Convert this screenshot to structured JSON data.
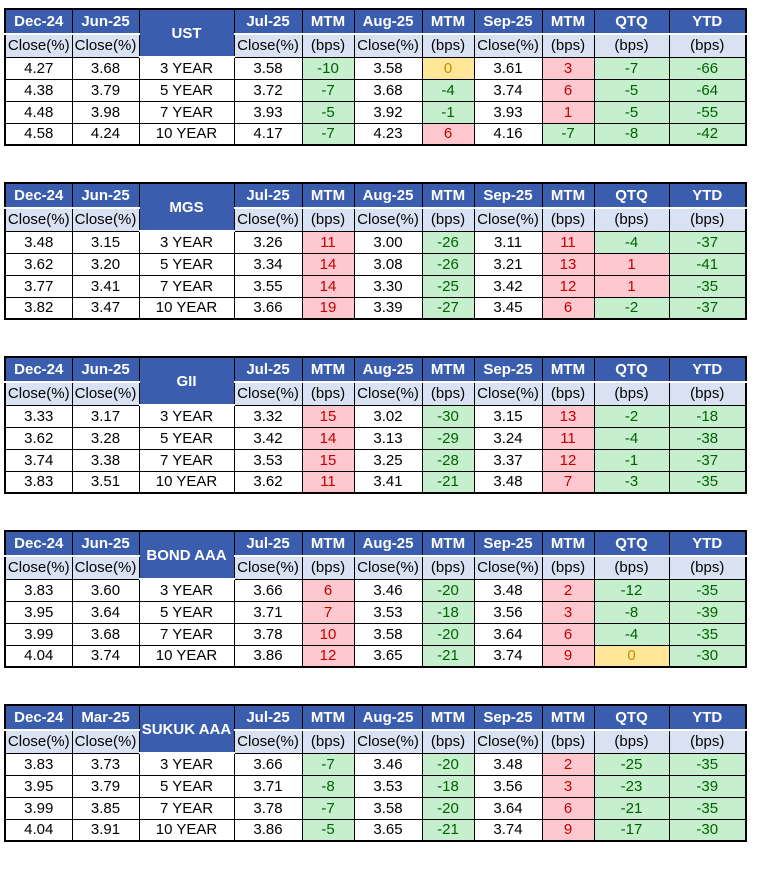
{
  "colors": {
    "header_bg": "#3A5DAD",
    "header_text": "#FFFFFF",
    "subheader_bg": "#D9E2F3",
    "name_bg": "#DEEAF6",
    "up_bg": "#FFC7CE",
    "up_text": "#C00000",
    "down_bg": "#C6EFCE",
    "down_text": "#006100",
    "zero_bg": "#FFE699",
    "zero_text": "#BF8F00"
  },
  "report": {
    "tables": [
      {
        "id": "ust",
        "name": "UST",
        "top_headers": [
          "Dec-24",
          "Jun-25",
          "Jul-25",
          "MTM",
          "Aug-25",
          "MTM",
          "Sep-25",
          "MTM",
          "QTQ",
          "YTD"
        ],
        "sub_headers": [
          "Close(%)",
          "Close(%)",
          "Close(%)",
          "(bps)",
          "Close(%)",
          "(bps)",
          "Close(%)",
          "(bps)",
          "(bps)",
          "(bps)"
        ],
        "rows": [
          [
            "4.27",
            "3.68",
            "3 YEAR",
            "3.58",
            {
              "v": "-10",
              "c": "green"
            },
            "3.58",
            {
              "v": "0",
              "c": "yellow"
            },
            "3.61",
            {
              "v": "3",
              "c": "red"
            },
            {
              "v": "-7",
              "c": "green"
            },
            {
              "v": "-66",
              "c": "green"
            }
          ],
          [
            "4.38",
            "3.79",
            "5 YEAR",
            "3.72",
            {
              "v": "-7",
              "c": "green"
            },
            "3.68",
            {
              "v": "-4",
              "c": "green"
            },
            "3.74",
            {
              "v": "6",
              "c": "red"
            },
            {
              "v": "-5",
              "c": "green"
            },
            {
              "v": "-64",
              "c": "green"
            }
          ],
          [
            "4.48",
            "3.98",
            "7 YEAR",
            "3.93",
            {
              "v": "-5",
              "c": "green"
            },
            "3.92",
            {
              "v": "-1",
              "c": "green"
            },
            "3.93",
            {
              "v": "1",
              "c": "red"
            },
            {
              "v": "-5",
              "c": "green"
            },
            {
              "v": "-55",
              "c": "green"
            }
          ],
          [
            "4.58",
            "4.24",
            "10 YEAR",
            "4.17",
            {
              "v": "-7",
              "c": "green"
            },
            "4.23",
            {
              "v": "6",
              "c": "red"
            },
            "4.16",
            {
              "v": "-7",
              "c": "green"
            },
            {
              "v": "-8",
              "c": "green"
            },
            {
              "v": "-42",
              "c": "green"
            }
          ]
        ]
      },
      {
        "id": "mgs",
        "name": "MGS",
        "top_headers": [
          "Dec-24",
          "Jun-25",
          "Jul-25",
          "MTM",
          "Aug-25",
          "MTM",
          "Sep-25",
          "MTM",
          "QTQ",
          "YTD"
        ],
        "sub_headers": [
          "Close(%)",
          "Close(%)",
          "Close(%)",
          "(bps)",
          "Close(%)",
          "(bps)",
          "Close(%)",
          "(bps)",
          "(bps)",
          "(bps)"
        ],
        "rows": [
          [
            "3.48",
            "3.15",
            "3 YEAR",
            "3.26",
            {
              "v": "11",
              "c": "red"
            },
            "3.00",
            {
              "v": "-26",
              "c": "green"
            },
            "3.11",
            {
              "v": "11",
              "c": "red"
            },
            {
              "v": "-4",
              "c": "green"
            },
            {
              "v": "-37",
              "c": "green"
            }
          ],
          [
            "3.62",
            "3.20",
            "5 YEAR",
            "3.34",
            {
              "v": "14",
              "c": "red"
            },
            "3.08",
            {
              "v": "-26",
              "c": "green"
            },
            "3.21",
            {
              "v": "13",
              "c": "red"
            },
            {
              "v": "1",
              "c": "red"
            },
            {
              "v": "-41",
              "c": "green"
            }
          ],
          [
            "3.77",
            "3.41",
            "7 YEAR",
            "3.55",
            {
              "v": "14",
              "c": "red"
            },
            "3.30",
            {
              "v": "-25",
              "c": "green"
            },
            "3.42",
            {
              "v": "12",
              "c": "red"
            },
            {
              "v": "1",
              "c": "red"
            },
            {
              "v": "-35",
              "c": "green"
            }
          ],
          [
            "3.82",
            "3.47",
            "10 YEAR",
            "3.66",
            {
              "v": "19",
              "c": "red"
            },
            "3.39",
            {
              "v": "-27",
              "c": "green"
            },
            "3.45",
            {
              "v": "6",
              "c": "red"
            },
            {
              "v": "-2",
              "c": "green"
            },
            {
              "v": "-37",
              "c": "green"
            }
          ]
        ]
      },
      {
        "id": "gii",
        "name": "GII",
        "top_headers": [
          "Dec-24",
          "Jun-25",
          "Jul-25",
          "MTM",
          "Aug-25",
          "MTM",
          "Sep-25",
          "MTM",
          "QTQ",
          "YTD"
        ],
        "sub_headers": [
          "Close(%)",
          "Close(%)",
          "Close(%)",
          "(bps)",
          "Close(%)",
          "(bps)",
          "Close(%)",
          "(bps)",
          "(bps)",
          "(bps)"
        ],
        "rows": [
          [
            "3.33",
            "3.17",
            "3 YEAR",
            "3.32",
            {
              "v": "15",
              "c": "red"
            },
            "3.02",
            {
              "v": "-30",
              "c": "green"
            },
            "3.15",
            {
              "v": "13",
              "c": "red"
            },
            {
              "v": "-2",
              "c": "green"
            },
            {
              "v": "-18",
              "c": "green"
            }
          ],
          [
            "3.62",
            "3.28",
            "5 YEAR",
            "3.42",
            {
              "v": "14",
              "c": "red"
            },
            "3.13",
            {
              "v": "-29",
              "c": "green"
            },
            "3.24",
            {
              "v": "11",
              "c": "red"
            },
            {
              "v": "-4",
              "c": "green"
            },
            {
              "v": "-38",
              "c": "green"
            }
          ],
          [
            "3.74",
            "3.38",
            "7 YEAR",
            "3.53",
            {
              "v": "15",
              "c": "red"
            },
            "3.25",
            {
              "v": "-28",
              "c": "green"
            },
            "3.37",
            {
              "v": "12",
              "c": "red"
            },
            {
              "v": "-1",
              "c": "green"
            },
            {
              "v": "-37",
              "c": "green"
            }
          ],
          [
            "3.83",
            "3.51",
            "10 YEAR",
            "3.62",
            {
              "v": "11",
              "c": "red"
            },
            "3.41",
            {
              "v": "-21",
              "c": "green"
            },
            "3.48",
            {
              "v": "7",
              "c": "red"
            },
            {
              "v": "-3",
              "c": "green"
            },
            {
              "v": "-35",
              "c": "green"
            }
          ]
        ]
      },
      {
        "id": "bond-aaa",
        "name": "BOND AAA",
        "top_headers": [
          "Dec-24",
          "Jun-25",
          "Jul-25",
          "MTM",
          "Aug-25",
          "MTM",
          "Sep-25",
          "MTM",
          "QTQ",
          "YTD"
        ],
        "sub_headers": [
          "Close(%)",
          "Close(%)",
          "Close(%)",
          "(bps)",
          "Close(%)",
          "(bps)",
          "Close(%)",
          "(bps)",
          "(bps)",
          "(bps)"
        ],
        "rows": [
          [
            "3.83",
            "3.60",
            "3 YEAR",
            "3.66",
            {
              "v": "6",
              "c": "red"
            },
            "3.46",
            {
              "v": "-20",
              "c": "green"
            },
            "3.48",
            {
              "v": "2",
              "c": "red"
            },
            {
              "v": "-12",
              "c": "green"
            },
            {
              "v": "-35",
              "c": "green"
            }
          ],
          [
            "3.95",
            "3.64",
            "5 YEAR",
            "3.71",
            {
              "v": "7",
              "c": "red"
            },
            "3.53",
            {
              "v": "-18",
              "c": "green"
            },
            "3.56",
            {
              "v": "3",
              "c": "red"
            },
            {
              "v": "-8",
              "c": "green"
            },
            {
              "v": "-39",
              "c": "green"
            }
          ],
          [
            "3.99",
            "3.68",
            "7 YEAR",
            "3.78",
            {
              "v": "10",
              "c": "red"
            },
            "3.58",
            {
              "v": "-20",
              "c": "green"
            },
            "3.64",
            {
              "v": "6",
              "c": "red"
            },
            {
              "v": "-4",
              "c": "green"
            },
            {
              "v": "-35",
              "c": "green"
            }
          ],
          [
            "4.04",
            "3.74",
            "10 YEAR",
            "3.86",
            {
              "v": "12",
              "c": "red"
            },
            "3.65",
            {
              "v": "-21",
              "c": "green"
            },
            "3.74",
            {
              "v": "9",
              "c": "red"
            },
            {
              "v": "0",
              "c": "yellow"
            },
            {
              "v": "-30",
              "c": "green"
            }
          ]
        ]
      },
      {
        "id": "sukuk-aaa",
        "name": "SUKUK AAA",
        "top_headers": [
          "Dec-24",
          "Mar-25",
          "Jul-25",
          "MTM",
          "Aug-25",
          "MTM",
          "Sep-25",
          "MTM",
          "QTQ",
          "YTD"
        ],
        "sub_headers": [
          "Close(%)",
          "Close(%)",
          "Close(%)",
          "(bps)",
          "Close(%)",
          "(bps)",
          "Close(%)",
          "(bps)",
          "(bps)",
          "(bps)"
        ],
        "rows": [
          [
            "3.83",
            "3.73",
            "3 YEAR",
            "3.66",
            {
              "v": "-7",
              "c": "green"
            },
            "3.46",
            {
              "v": "-20",
              "c": "green"
            },
            "3.48",
            {
              "v": "2",
              "c": "red"
            },
            {
              "v": "-25",
              "c": "green"
            },
            {
              "v": "-35",
              "c": "green"
            }
          ],
          [
            "3.95",
            "3.79",
            "5 YEAR",
            "3.71",
            {
              "v": "-8",
              "c": "green"
            },
            "3.53",
            {
              "v": "-18",
              "c": "green"
            },
            "3.56",
            {
              "v": "3",
              "c": "red"
            },
            {
              "v": "-23",
              "c": "green"
            },
            {
              "v": "-39",
              "c": "green"
            }
          ],
          [
            "3.99",
            "3.85",
            "7 YEAR",
            "3.78",
            {
              "v": "-7",
              "c": "green"
            },
            "3.58",
            {
              "v": "-20",
              "c": "green"
            },
            "3.64",
            {
              "v": "6",
              "c": "red"
            },
            {
              "v": "-21",
              "c": "green"
            },
            {
              "v": "-35",
              "c": "green"
            }
          ],
          [
            "4.04",
            "3.91",
            "10 YEAR",
            "3.86",
            {
              "v": "-5",
              "c": "green"
            },
            "3.65",
            {
              "v": "-21",
              "c": "green"
            },
            "3.74",
            {
              "v": "9",
              "c": "red"
            },
            {
              "v": "-17",
              "c": "green"
            },
            {
              "v": "-30",
              "c": "green"
            }
          ]
        ]
      }
    ]
  }
}
